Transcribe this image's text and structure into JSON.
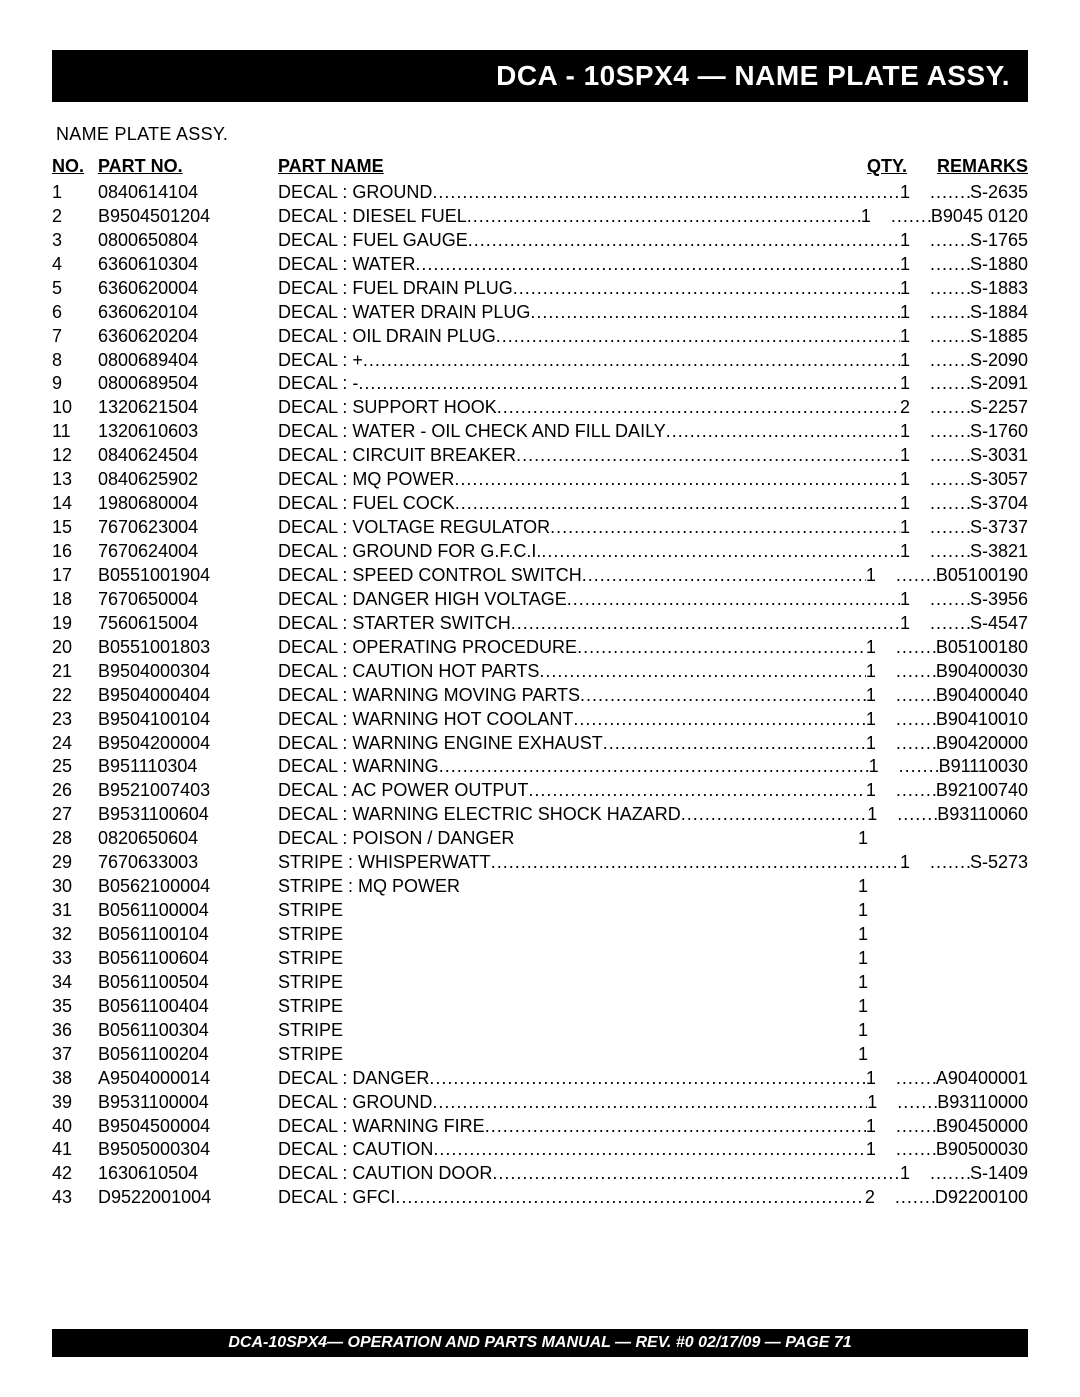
{
  "title": "DCA - 10SPX4 — NAME PLATE ASSY.",
  "subtitle": "NAME PLATE ASSY.",
  "columns": {
    "no": "NO.",
    "part": "PART NO.",
    "name": "PART NAME",
    "qty": "QTY.",
    "remarks": "REMARKS"
  },
  "rows": [
    {
      "no": "1",
      "part": "0840614104",
      "name": "DECAL : GROUND",
      "qty": "1",
      "rem": "S-2635",
      "dots": true
    },
    {
      "no": "2",
      "part": "B9504501204",
      "name": "DECAL : DIESEL FUEL",
      "qty": "1",
      "rem": "B9045 0120",
      "dots": true
    },
    {
      "no": "3",
      "part": "0800650804",
      "name": "DECAL : FUEL GAUGE",
      "qty": "1",
      "rem": "S-1765",
      "dots": true
    },
    {
      "no": "4",
      "part": "6360610304",
      "name": "DECAL : WATER",
      "qty": "1",
      "rem": "S-1880",
      "dots": true
    },
    {
      "no": "5",
      "part": "6360620004",
      "name": "DECAL : FUEL DRAIN PLUG",
      "qty": "1",
      "rem": "S-1883",
      "dots": true
    },
    {
      "no": "6",
      "part": "6360620104",
      "name": "DECAL : WATER DRAIN PLUG",
      "qty": "1",
      "rem": "S-1884",
      "dots": true
    },
    {
      "no": "7",
      "part": "6360620204",
      "name": "DECAL : OIL DRAIN PLUG",
      "qty": "1",
      "rem": "S-1885",
      "dots": true
    },
    {
      "no": "8",
      "part": "0800689404",
      "name": "DECAL : +",
      "qty": "1",
      "rem": "S-2090",
      "dots": true
    },
    {
      "no": "9",
      "part": "0800689504",
      "name": "DECAL : -",
      "qty": "1",
      "rem": "S-2091",
      "dots": true
    },
    {
      "no": "10",
      "part": "1320621504",
      "name": "DECAL : SUPPORT HOOK",
      "qty": "2",
      "rem": "S-2257",
      "dots": true
    },
    {
      "no": "11",
      "part": "1320610603",
      "name": "DECAL : WATER -  OIL CHECK AND FILL DAILY",
      "qty": "1",
      "rem": "S-1760",
      "dots": true
    },
    {
      "no": "12",
      "part": "0840624504",
      "name": "DECAL : CIRCUIT BREAKER",
      "qty": "1",
      "rem": "S-3031",
      "dots": true
    },
    {
      "no": "13",
      "part": "0840625902",
      "name": "DECAL : MQ POWER",
      "qty": "1",
      "rem": "S-3057",
      "dots": true
    },
    {
      "no": "14",
      "part": "1980680004",
      "name": "DECAL : FUEL COCK",
      "qty": "1",
      "rem": "S-3704",
      "dots": true
    },
    {
      "no": "15",
      "part": "7670623004",
      "name": "DECAL : VOLTAGE REGULATOR",
      "qty": "1",
      "rem": "S-3737",
      "dots": true
    },
    {
      "no": "16",
      "part": "7670624004",
      "name": "DECAL : GROUND FOR G.F.C.I.",
      "qty": "1",
      "rem": "S-3821",
      "dots": true
    },
    {
      "no": "17",
      "part": "B0551001904",
      "name": "DECAL : SPEED CONTROL SWITCH",
      "qty": "1",
      "rem": "B05100190",
      "dots": true
    },
    {
      "no": "18",
      "part": "7670650004",
      "name": "DECAL : DANGER HIGH VOLTAGE",
      "qty": "1",
      "rem": "S-3956",
      "dots": true
    },
    {
      "no": "19",
      "part": "7560615004",
      "name": "DECAL : STARTER SWITCH",
      "qty": "1",
      "rem": "S-4547",
      "dots": true
    },
    {
      "no": "20",
      "part": "B0551001803",
      "name": "DECAL : OPERATING PROCEDURE",
      "qty": "1",
      "rem": "B05100180",
      "dots": true
    },
    {
      "no": "21",
      "part": "B9504000304",
      "name": "DECAL : CAUTION HOT PARTS",
      "qty": "1",
      "rem": "B90400030",
      "dots": true
    },
    {
      "no": "22",
      "part": "B9504000404",
      "name": "DECAL : WARNING MOVING PARTS",
      "qty": "1",
      "rem": "B90400040",
      "dots": true
    },
    {
      "no": "23",
      "part": "B9504100104",
      "name": "DECAL : WARNING HOT COOLANT",
      "qty": "1",
      "rem": "B90410010",
      "dots": true
    },
    {
      "no": "24",
      "part": "B9504200004",
      "name": "DECAL : WARNING ENGINE EXHAUST",
      "qty": "1",
      "rem": "B90420000",
      "dots": true
    },
    {
      "no": "25",
      "part": "B951110304",
      "name": "DECAL : WARNING",
      "qty": "1",
      "rem": "B91110030",
      "dots": true
    },
    {
      "no": "26",
      "part": "B9521007403",
      "name": "DECAL : AC POWER OUTPUT",
      "qty": "1",
      "rem": "B92100740",
      "dots": true
    },
    {
      "no": "27",
      "part": "B9531100604",
      "name": "DECAL : WARNING ELECTRIC SHOCK HAZARD",
      "qty": "1",
      "rem": "B93110060",
      "dots": true
    },
    {
      "no": "28",
      "part": "0820650604",
      "name": "DECAL : POISON / DANGER",
      "qty": "1",
      "rem": "",
      "dots": false
    },
    {
      "no": "29",
      "part": "7670633003",
      "name": "STRIPE : WHISPERWATT",
      "qty": "1",
      "rem": "S-5273",
      "dots": true
    },
    {
      "no": "30",
      "part": "B0562100004",
      "name": "STRIPE : MQ POWER",
      "qty": "1",
      "rem": "",
      "dots": false
    },
    {
      "no": "31",
      "part": "B0561100004",
      "name": "STRIPE",
      "qty": "1",
      "rem": "",
      "dots": false
    },
    {
      "no": "32",
      "part": "B0561100104",
      "name": "STRIPE",
      "qty": "1",
      "rem": "",
      "dots": false
    },
    {
      "no": "33",
      "part": "B0561100604",
      "name": "STRIPE",
      "qty": "1",
      "rem": "",
      "dots": false
    },
    {
      "no": "34",
      "part": "B0561100504",
      "name": "STRIPE",
      "qty": "1",
      "rem": "",
      "dots": false
    },
    {
      "no": "35",
      "part": "B0561100404",
      "name": "STRIPE",
      "qty": "1",
      "rem": "",
      "dots": false
    },
    {
      "no": "36",
      "part": "B0561100304",
      "name": "STRIPE",
      "qty": "1",
      "rem": "",
      "dots": false
    },
    {
      "no": "37",
      "part": "B0561100204",
      "name": "STRIPE",
      "qty": "1",
      "rem": "",
      "dots": false
    },
    {
      "no": "38",
      "part": "A9504000014",
      "name": "DECAL : DANGER",
      "qty": "1",
      "rem": "A90400001",
      "dots": true
    },
    {
      "no": "39",
      "part": "B9531100004",
      "name": "DECAL : GROUND",
      "qty": "1",
      "rem": "B93110000",
      "dots": true
    },
    {
      "no": "40",
      "part": "B9504500004",
      "name": "DECAL : WARNING FIRE",
      "qty": "1",
      "rem": "B90450000",
      "dots": true
    },
    {
      "no": "41",
      "part": "B9505000304",
      "name": "DECAL : CAUTION",
      "qty": "1",
      "rem": "B90500030",
      "dots": true
    },
    {
      "no": "42",
      "part": "1630610504",
      "name": "DECAL : CAUTION DOOR",
      "qty": "1",
      "rem": "S-1409",
      "dots": true
    },
    {
      "no": "43",
      "part": "D9522001004",
      "name": "DECAL : GFCI",
      "qty": "2",
      "rem": "D92200100",
      "dots": true
    }
  ],
  "footer": "DCA-10SPX4— OPERATION AND PARTS MANUAL — REV. #0  02/17/09 — PAGE 71"
}
